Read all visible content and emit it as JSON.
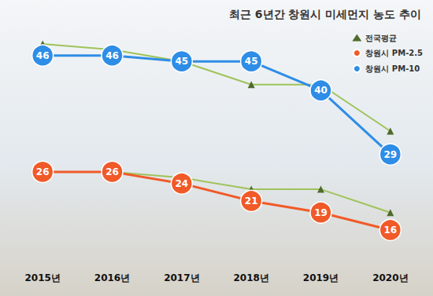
{
  "chart_data": {
    "type": "line",
    "title": "최근 6년간 창원시 미세먼지 농도 추이",
    "categories": [
      "2015년",
      "2016년",
      "2017년",
      "2018년",
      "2019년",
      "2020년"
    ],
    "series": [
      {
        "name": "전국평균",
        "color": "#9fc35a",
        "marker": "triangle",
        "line_style": "solid",
        "values": [
          48,
          47,
          45,
          41,
          41,
          33
        ]
      },
      {
        "name": "전국평균",
        "color": "#9fc35a",
        "marker": "triangle",
        "line_style": "solid",
        "values": [
          26,
          26,
          25,
          23,
          23,
          19
        ]
      },
      {
        "name": "창원시 PM-2.5",
        "color": "#f05a28",
        "marker": "circle",
        "line_style": "solid",
        "data_labels": true,
        "values": [
          26,
          26,
          24,
          21,
          19,
          16
        ]
      },
      {
        "name": "창원시 PM-10",
        "color": "#2e8de6",
        "marker": "circle",
        "line_style": "solid",
        "data_labels": true,
        "values": [
          46,
          46,
          45,
          45,
          40,
          29
        ]
      }
    ],
    "ylim": [
      11,
      51.5
    ],
    "grid": false,
    "legend": "upper right",
    "tick_labels": "x"
  }
}
